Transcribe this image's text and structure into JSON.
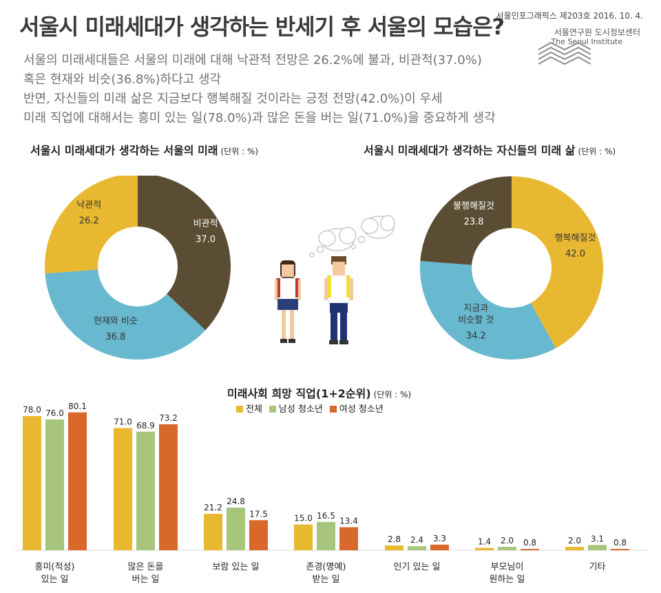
{
  "header": {
    "title": "서울시 미래세대가 생각하는 반세기 후 서울의 모습은?",
    "issue": "서울인포그래픽스 제203호 2016. 10. 4.",
    "institute_kr": "서울연구원 도시정보센터",
    "institute_en": "The Seoul Institute"
  },
  "summary": [
    "서울의 미래세대들은 서울의 미래에 대해 낙관적 전망은 26.2%에 불과, 비관적(37.0%)",
    "혹은 현재와 비슷(36.8%)하다고 생각",
    "반면, 자신들의 미래 삶은 지금보다 행복해질 것이라는 긍정 전망(42.0%)이 우세",
    "미래 직업에 대해서는 흥미 있는 일(78.0%)과 많은 돈을 버는 일(71.0%)을 중요하게 생각"
  ],
  "chart1": {
    "title": "서울시 미래세대가 생각하는 서울의 미래",
    "unit": "(단위 : %)"
  },
  "chart2": {
    "title": "서울시 미래세대가 생각하는 자신들의 미래 삶",
    "unit": "(단위 : %)"
  },
  "chart3": {
    "title": "미래사회 희망 직업(1+2순위)",
    "unit": "(단위 : %)"
  },
  "colors": {
    "mustard": "#E8B830",
    "brown": "#5A4D33",
    "blue": "#68B8CF",
    "green": "#A8C57E",
    "orange": "#D9682B"
  },
  "chart_data": [
    {
      "type": "pie",
      "title": "서울시 미래세대가 생각하는 서울의 미래",
      "slices": [
        {
          "label": "비관적",
          "value": 37.0,
          "color": "#5A4D33"
        },
        {
          "label": "현재와 비슷",
          "value": 36.8,
          "color": "#68B8CF"
        },
        {
          "label": "낙관적",
          "value": 26.2,
          "color": "#E8B830"
        }
      ]
    },
    {
      "type": "pie",
      "title": "서울시 미래세대가 생각하는 자신들의 미래 삶",
      "slices": [
        {
          "label": "행복해질것",
          "value": 42.0,
          "color": "#E8B830"
        },
        {
          "label": "지금과 비슷할 것",
          "value": 34.2,
          "color": "#68B8CF"
        },
        {
          "label": "불행해질것",
          "value": 23.8,
          "color": "#5A4D33"
        }
      ]
    },
    {
      "type": "bar",
      "title": "미래사회 희망 직업(1+2순위)",
      "categories": [
        "흥미(적성) 있는 일",
        "많은 돈을 버는 일",
        "보람 있는 일",
        "존경(명예) 받는 일",
        "인기 있는 일",
        "부모님이 원하는 일",
        "기타"
      ],
      "series": [
        {
          "name": "전체",
          "color": "#E8B830",
          "values": [
            78.0,
            71.0,
            21.2,
            15.0,
            2.8,
            1.4,
            2.0
          ]
        },
        {
          "name": "남성 청소년",
          "color": "#A8C57E",
          "values": [
            76.0,
            68.9,
            24.8,
            16.5,
            2.4,
            2.0,
            3.1
          ]
        },
        {
          "name": "여성 청소년",
          "color": "#D9682B",
          "values": [
            80.1,
            73.2,
            17.5,
            13.4,
            3.3,
            0.8,
            0.8
          ]
        }
      ]
    }
  ]
}
